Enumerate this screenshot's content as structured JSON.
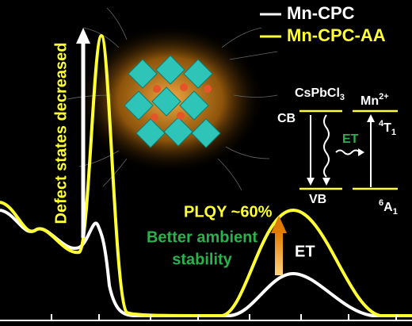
{
  "legend": {
    "entries": [
      "Mn-CPC",
      "Mn-CPC-AA"
    ]
  },
  "annotations": {
    "vertical": "Defect states decreased",
    "plqy": "PLQY ~60%",
    "stability": [
      "Better ambient",
      "stability"
    ],
    "transfer": "ET"
  },
  "energy_diagram": {
    "host": {
      "base": "CsPbCl",
      "sub": "3"
    },
    "cb": "CB",
    "vb": "VB",
    "transfer": "ET",
    "ion": {
      "base": "Mn",
      "sup": "2+"
    },
    "upper": {
      "sup": "4",
      "base": "T",
      "sub": "1"
    },
    "lower": {
      "sup": "6",
      "base": "A",
      "sub": "1"
    }
  }
}
